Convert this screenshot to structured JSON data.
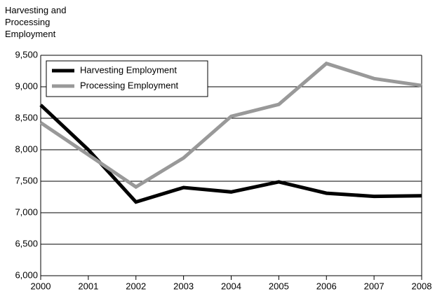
{
  "chart_data": {
    "type": "line",
    "ylabel": "Harvesting and Processing Employment",
    "x": [
      2000,
      2001,
      2002,
      2003,
      2004,
      2005,
      2006,
      2007,
      2008
    ],
    "xlim": [
      2000,
      2008
    ],
    "xticks": [
      2000,
      2001,
      2002,
      2003,
      2004,
      2005,
      2006,
      2007,
      2008
    ],
    "ylim": [
      6000,
      9500
    ],
    "yticks": [
      {
        "value": 6000,
        "label": "6,000"
      },
      {
        "value": 6500,
        "label": "6,500"
      },
      {
        "value": 7000,
        "label": "7,000"
      },
      {
        "value": 7500,
        "label": "7,500"
      },
      {
        "value": 8000,
        "label": "8,000"
      },
      {
        "value": 8500,
        "label": "8,500"
      },
      {
        "value": 9000,
        "label": "9,000"
      },
      {
        "value": 9500,
        "label": "9,500"
      }
    ],
    "grid": true,
    "legend": "upper left",
    "series": [
      {
        "name": "Harvesting Employment",
        "color": "#000000",
        "values": [
          8710,
          8000,
          7170,
          7400,
          7330,
          7490,
          7310,
          7260,
          7270
        ]
      },
      {
        "name": "Processing Employment",
        "color": "#999999",
        "values": [
          8430,
          7920,
          7410,
          7870,
          8530,
          8720,
          9370,
          9130,
          9020
        ]
      }
    ]
  }
}
